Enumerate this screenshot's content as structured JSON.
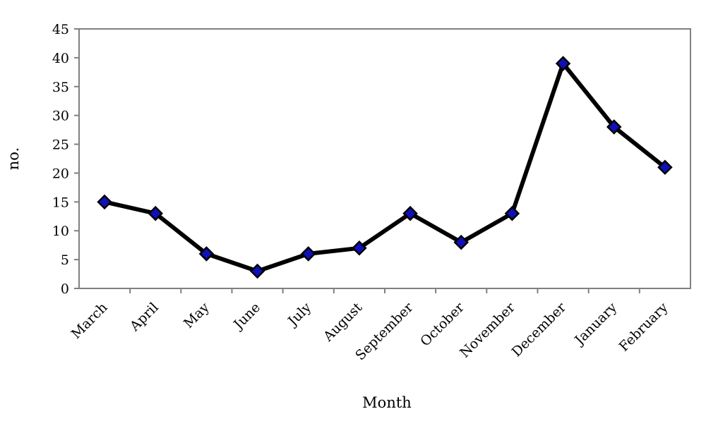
{
  "chart_data": {
    "type": "line",
    "title": "",
    "xlabel": "Month",
    "ylabel": "no.",
    "categories": [
      "March",
      "April",
      "May",
      "June",
      "July",
      "August",
      "September",
      "October",
      "November",
      "December",
      "January",
      "February"
    ],
    "series": [
      {
        "values": [
          15,
          13,
          6,
          3,
          6,
          7,
          13,
          8,
          13,
          39,
          28,
          21
        ]
      }
    ],
    "ylim": [
      0,
      45
    ],
    "yticks": [
      0,
      5,
      10,
      15,
      20,
      25,
      30,
      35,
      40,
      45
    ],
    "grid": false,
    "legend": "none",
    "colors": {
      "line": "#000000",
      "marker_fill": "#1010b8",
      "marker_edge": "#000000",
      "plot_border": "#808080"
    }
  }
}
